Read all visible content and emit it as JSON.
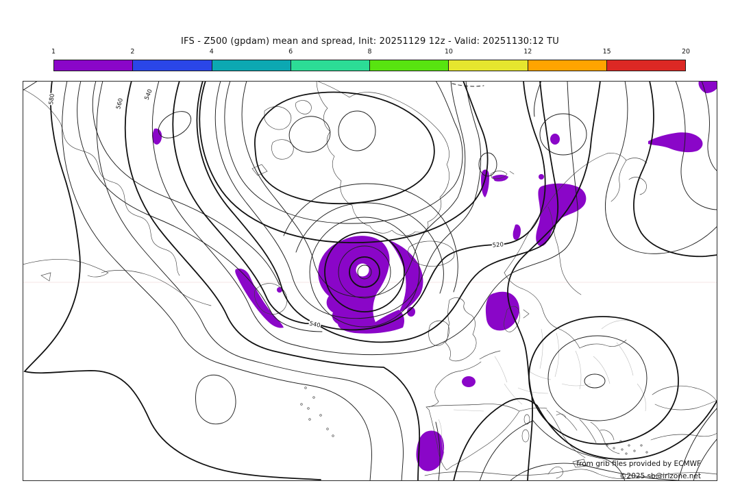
{
  "title": "IFS - Z500 (gpdam) mean and spread, Init: 20251129 12z - Valid: 20251130:12 TU",
  "colorbar": {
    "ticks": [
      "1",
      "2",
      "4",
      "6",
      "8",
      "10",
      "12",
      "15",
      "20"
    ],
    "segments": [
      {
        "range": "1-2",
        "color": "#8A06C8"
      },
      {
        "range": "2-4",
        "color": "#2A46E8"
      },
      {
        "range": "4-6",
        "color": "#0CA8B2"
      },
      {
        "range": "6-8",
        "color": "#2CDC96"
      },
      {
        "range": "8-10",
        "color": "#58E410"
      },
      {
        "range": "10-12",
        "color": "#E6E62E"
      },
      {
        "range": "12-15",
        "color": "#FFA400"
      },
      {
        "range": "15-20",
        "color": "#DC2824"
      }
    ]
  },
  "map": {
    "contour_labels": [
      {
        "text": "580"
      },
      {
        "text": "560"
      },
      {
        "text": "540"
      },
      {
        "text": "540"
      },
      {
        "text": "520"
      }
    ],
    "credits_line1": "from grib files provided by ECMWF",
    "credits_line2": "©2025 sb@irizone.net"
  },
  "chart_data": {
    "type": "contour_map",
    "title": "IFS - Z500 (gpdam) mean and spread, Init: 20251129 12z - Valid: 20251130:12 TU",
    "model": "IFS",
    "init": "20251129 12z",
    "valid": "20251130:12 TU",
    "variable": "Z500 geopotential height mean (gpdam), black contours",
    "labeled_contours_gpdam": [
      520,
      540,
      560,
      580
    ],
    "spread_shading": {
      "units": "gpdam",
      "levels": [
        1,
        2,
        4,
        6,
        8,
        10,
        12,
        15,
        20
      ],
      "colors": [
        "#8A06C8",
        "#2A46E8",
        "#0CA8B2",
        "#2CDC96",
        "#58E410",
        "#E6E62E",
        "#FFA400",
        "#DC2824"
      ],
      "note": "only the 1-2 purple class appears on this map; white where spread < 1"
    },
    "region": "North Atlantic: eastern North America, Greenland, Iceland, Europe, Mediterranean",
    "features": [
      {
        "name": "deep closed low, concentric contours with purple spread spiral",
        "approx_position": "south of Iceland (map center)"
      },
      {
        "name": "closed low with two inner cells",
        "approx_position": "Canadian Arctic (top center)"
      },
      {
        "name": "closed 520 low with small inner oval",
        "approx_position": "Balkans / Black Sea (lower right)"
      },
      {
        "name": "subtropical ridge with one closed contour",
        "approx_position": "lower left Atlantic"
      },
      {
        "name": "trough with purple spread blob",
        "approx_position": "Iberian Peninsula"
      },
      {
        "name": "additional purple spread patches",
        "approx_position": "Scandinavia, Baltic, Barents Sea, Svalbard, North Sea / Denmark, Labrador Sea, NW corner"
      }
    ],
    "legend_position": "horizontal colorbar at top",
    "grid": "off"
  }
}
